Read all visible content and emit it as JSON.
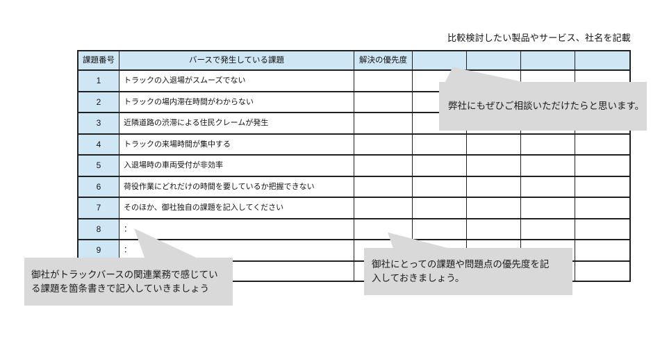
{
  "page": {
    "top_note": "比較検討したい製品やサービス、社名を記載"
  },
  "table": {
    "headers": [
      "課題番号",
      "バースで発生している課題",
      "解決の優先度",
      "",
      "",
      "",
      ""
    ],
    "rows": [
      {
        "num": "1",
        "issue": "トラックの入退場がスムーズでない"
      },
      {
        "num": "2",
        "issue": "トラックの場内滞在時間がわからない"
      },
      {
        "num": "3",
        "issue": "近隣道路の渋滞による住民クレームが発生"
      },
      {
        "num": "4",
        "issue": "トラックの来場時間が集中する"
      },
      {
        "num": "5",
        "issue": "入退場時の車両受付が非効率"
      },
      {
        "num": "6",
        "issue": "荷役作業にどれだけの時間を要しているか把握できない"
      },
      {
        "num": "7",
        "issue": "そのほか、御社独自の課題を記入してください"
      },
      {
        "num": "8",
        "issue": "："
      },
      {
        "num": "9",
        "issue": "："
      },
      {
        "num": "",
        "issue": ""
      }
    ]
  },
  "callouts": {
    "consult": "弊社にもぜひご相談いただけたらと思います。",
    "priority": "御社にとっての課題や問題点の優先度を記入しておきましょう。",
    "issues": "御社がトラックバースの関連業務で感じている課題を箇条書きで記入していきましょう"
  },
  "colors": {
    "header_blue": "#cfe6f4",
    "callout_gray": "#d9d9d9",
    "border": "#1f1f1f"
  }
}
